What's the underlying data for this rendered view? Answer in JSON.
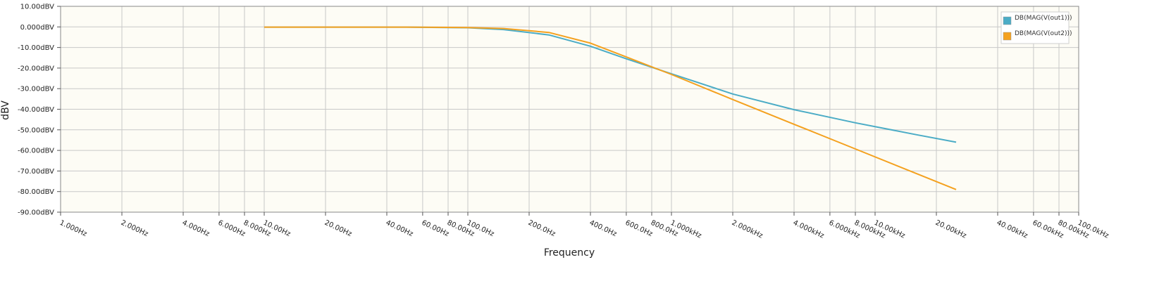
{
  "chart_data": {
    "type": "line",
    "title": "",
    "xlabel": "Frequency",
    "ylabel": "dBV",
    "x_scale": "log",
    "xlim": [
      1,
      100000
    ],
    "ylim": [
      -90,
      10
    ],
    "grid": true,
    "legend_position": "top-right",
    "colors": {
      "plot_background": "#fdfcf5",
      "grid": "#c8c8c8",
      "axis": "#888888"
    },
    "y_ticks": [
      {
        "value": 10,
        "label": "10.00dBV"
      },
      {
        "value": 0,
        "label": "0.000dBV"
      },
      {
        "value": -10,
        "label": "-10.00dBV"
      },
      {
        "value": -20,
        "label": "-20.00dBV"
      },
      {
        "value": -30,
        "label": "-30.00dBV"
      },
      {
        "value": -40,
        "label": "-40.00dBV"
      },
      {
        "value": -50,
        "label": "-50.00dBV"
      },
      {
        "value": -60,
        "label": "-60.00dBV"
      },
      {
        "value": -70,
        "label": "-70.00dBV"
      },
      {
        "value": -80,
        "label": "-80.00dBV"
      },
      {
        "value": -90,
        "label": "-90.00dBV"
      }
    ],
    "x_ticks": [
      {
        "value": 1,
        "label": "1.000Hz"
      },
      {
        "value": 2,
        "label": "2.000Hz"
      },
      {
        "value": 4,
        "label": "4.000Hz"
      },
      {
        "value": 6,
        "label": "6.000Hz"
      },
      {
        "value": 8,
        "label": "8.000Hz"
      },
      {
        "value": 10,
        "label": "10.00Hz"
      },
      {
        "value": 20,
        "label": "20.00Hz"
      },
      {
        "value": 40,
        "label": "40.00Hz"
      },
      {
        "value": 60,
        "label": "60.00Hz"
      },
      {
        "value": 80,
        "label": "80.00Hz"
      },
      {
        "value": 100,
        "label": "100.0Hz"
      },
      {
        "value": 200,
        "label": "200.0Hz"
      },
      {
        "value": 400,
        "label": "400.0Hz"
      },
      {
        "value": 600,
        "label": "600.0Hz"
      },
      {
        "value": 800,
        "label": "800.0Hz"
      },
      {
        "value": 1000,
        "label": "1.000kHz"
      },
      {
        "value": 2000,
        "label": "2.000kHz"
      },
      {
        "value": 4000,
        "label": "4.000kHz"
      },
      {
        "value": 6000,
        "label": "6.000kHz"
      },
      {
        "value": 8000,
        "label": "8.000kHz"
      },
      {
        "value": 10000,
        "label": "10.00kHz"
      },
      {
        "value": 20000,
        "label": "20.00kHz"
      },
      {
        "value": 40000,
        "label": "40.00kHz"
      },
      {
        "value": 60000,
        "label": "60.00kHz"
      },
      {
        "value": 80000,
        "label": "80.00kHz"
      },
      {
        "value": 100000,
        "label": "100.0kHz"
      }
    ],
    "series": [
      {
        "name": "DB(MAG(V(out1)))",
        "color": "#4bacc6",
        "x": [
          10,
          20,
          50,
          100,
          150,
          250,
          400,
          600,
          1000,
          2000,
          4000,
          8000,
          16000,
          25000
        ],
        "y": [
          -0.1,
          -0.1,
          -0.1,
          -0.4,
          -1.3,
          -3.9,
          -9.4,
          -15.5,
          -22.8,
          -32.6,
          -40.2,
          -46.6,
          -52.4,
          -56.0
        ]
      },
      {
        "name": "DB(MAG(V(out2)))",
        "color": "#f4a11f",
        "x": [
          10,
          20,
          50,
          100,
          150,
          250,
          400,
          600,
          1000,
          2000,
          4000,
          8000,
          16000,
          25000
        ],
        "y": [
          -0.1,
          -0.1,
          -0.1,
          -0.3,
          -0.8,
          -2.7,
          -7.9,
          -14.6,
          -23.1,
          -35.3,
          -47.3,
          -59.3,
          -71.3,
          -79.0
        ]
      }
    ]
  }
}
